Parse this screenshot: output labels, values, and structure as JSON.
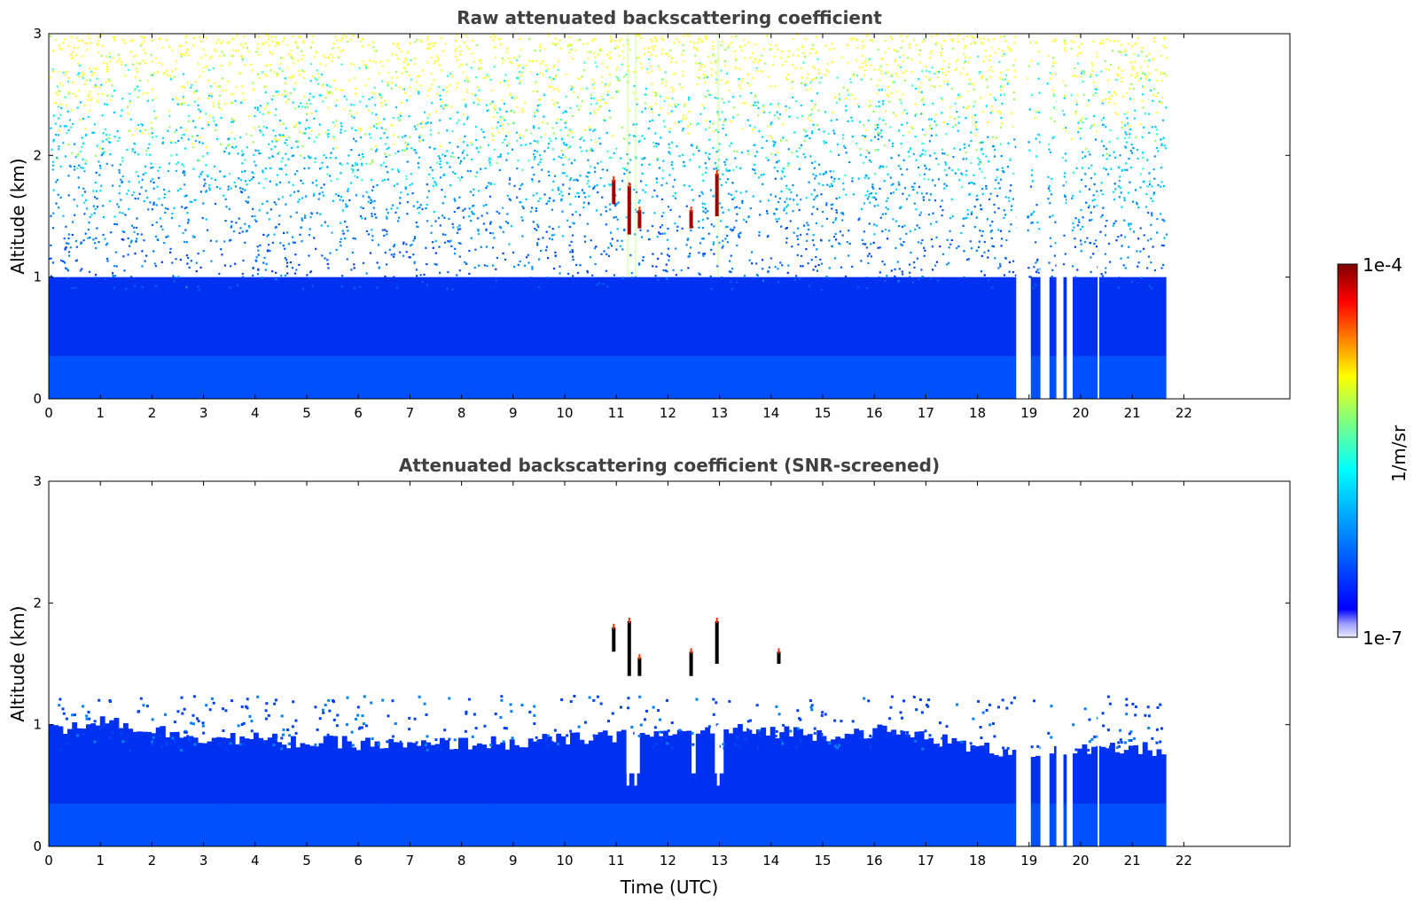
{
  "chart_data": [
    {
      "type": "heatmap",
      "title": "Raw attenuated backscattering coefficient",
      "xlabel": "",
      "ylabel": "Altitude (km)",
      "xlim": [
        0,
        24
      ],
      "ylim": [
        0,
        3
      ],
      "x_ticks": [
        "0",
        "1",
        "2",
        "3",
        "4",
        "5",
        "6",
        "7",
        "8",
        "9",
        "10",
        "11",
        "12",
        "13",
        "14",
        "15",
        "16",
        "17",
        "18",
        "19",
        "20",
        "21",
        "22"
      ],
      "y_ticks": [
        "0",
        "1",
        "2",
        "3"
      ],
      "data_end_time": 21.65,
      "data_gaps": [
        [
          18.75,
          18.95
        ],
        [
          19.22,
          19.33
        ],
        [
          19.53,
          19.63
        ],
        [
          19.73,
          19.8
        ],
        [
          20.33,
          20.36
        ]
      ],
      "boundary_layer_top_km": 1.0,
      "cloud_features": [
        {
          "time": 11.25,
          "alt_low": 1.35,
          "alt_high": 1.75
        },
        {
          "time": 11.45,
          "alt_low": 1.4,
          "alt_high": 1.55
        },
        {
          "time": 12.45,
          "alt_low": 1.4,
          "alt_high": 1.55
        },
        {
          "time": 12.95,
          "alt_low": 1.5,
          "alt_high": 1.85
        },
        {
          "time": 10.95,
          "alt_low": 1.6,
          "alt_high": 1.8
        }
      ]
    },
    {
      "type": "heatmap",
      "title": "Attenuated backscattering coefficient (SNR-screened)",
      "xlabel": "Time (UTC)",
      "ylabel": "Altitude (km)",
      "xlim": [
        0,
        24
      ],
      "ylim": [
        0,
        3
      ],
      "x_ticks": [
        "0",
        "1",
        "2",
        "3",
        "4",
        "5",
        "6",
        "7",
        "8",
        "9",
        "10",
        "11",
        "12",
        "13",
        "14",
        "15",
        "16",
        "17",
        "18",
        "19",
        "20",
        "21",
        "22"
      ],
      "y_ticks": [
        "0",
        "1",
        "2",
        "3"
      ],
      "data_end_time": 21.65,
      "data_gaps": [
        [
          18.75,
          18.95
        ],
        [
          19.22,
          19.33
        ],
        [
          19.53,
          19.63
        ],
        [
          19.73,
          19.8
        ],
        [
          20.33,
          20.36
        ]
      ],
      "layer_top_km": [
        [
          0,
          0.95
        ],
        [
          1,
          1.05
        ],
        [
          2,
          0.95
        ],
        [
          3,
          0.9
        ],
        [
          4,
          0.88
        ],
        [
          5,
          0.85
        ],
        [
          6,
          0.85
        ],
        [
          7,
          0.82
        ],
        [
          8,
          0.85
        ],
        [
          9,
          0.85
        ],
        [
          10,
          0.88
        ],
        [
          11,
          0.9
        ],
        [
          12,
          0.92
        ],
        [
          13,
          0.95
        ],
        [
          14,
          0.95
        ],
        [
          15,
          0.92
        ],
        [
          16,
          0.95
        ],
        [
          17,
          0.9
        ],
        [
          18,
          0.8
        ],
        [
          19,
          0.78
        ],
        [
          20,
          0.78
        ],
        [
          21,
          0.8
        ],
        [
          21.65,
          0.8
        ]
      ],
      "cloud_features": [
        {
          "time": 11.25,
          "alt_low": 1.4,
          "alt_high": 1.85
        },
        {
          "time": 11.45,
          "alt_low": 1.4,
          "alt_high": 1.55
        },
        {
          "time": 12.45,
          "alt_low": 1.4,
          "alt_high": 1.6
        },
        {
          "time": 12.95,
          "alt_low": 1.5,
          "alt_high": 1.85
        },
        {
          "time": 10.95,
          "alt_low": 1.6,
          "alt_high": 1.8
        },
        {
          "time": 14.15,
          "alt_low": 1.5,
          "alt_high": 1.6
        }
      ]
    }
  ],
  "colorbar": {
    "label": "1/m/sr",
    "max_label": "1e-4",
    "min_label": "1e-7",
    "colors": [
      "#0000ff",
      "#00aaff",
      "#00ffff",
      "#80ff80",
      "#ffff00",
      "#ff8000",
      "#ff0000",
      "#800000"
    ]
  }
}
